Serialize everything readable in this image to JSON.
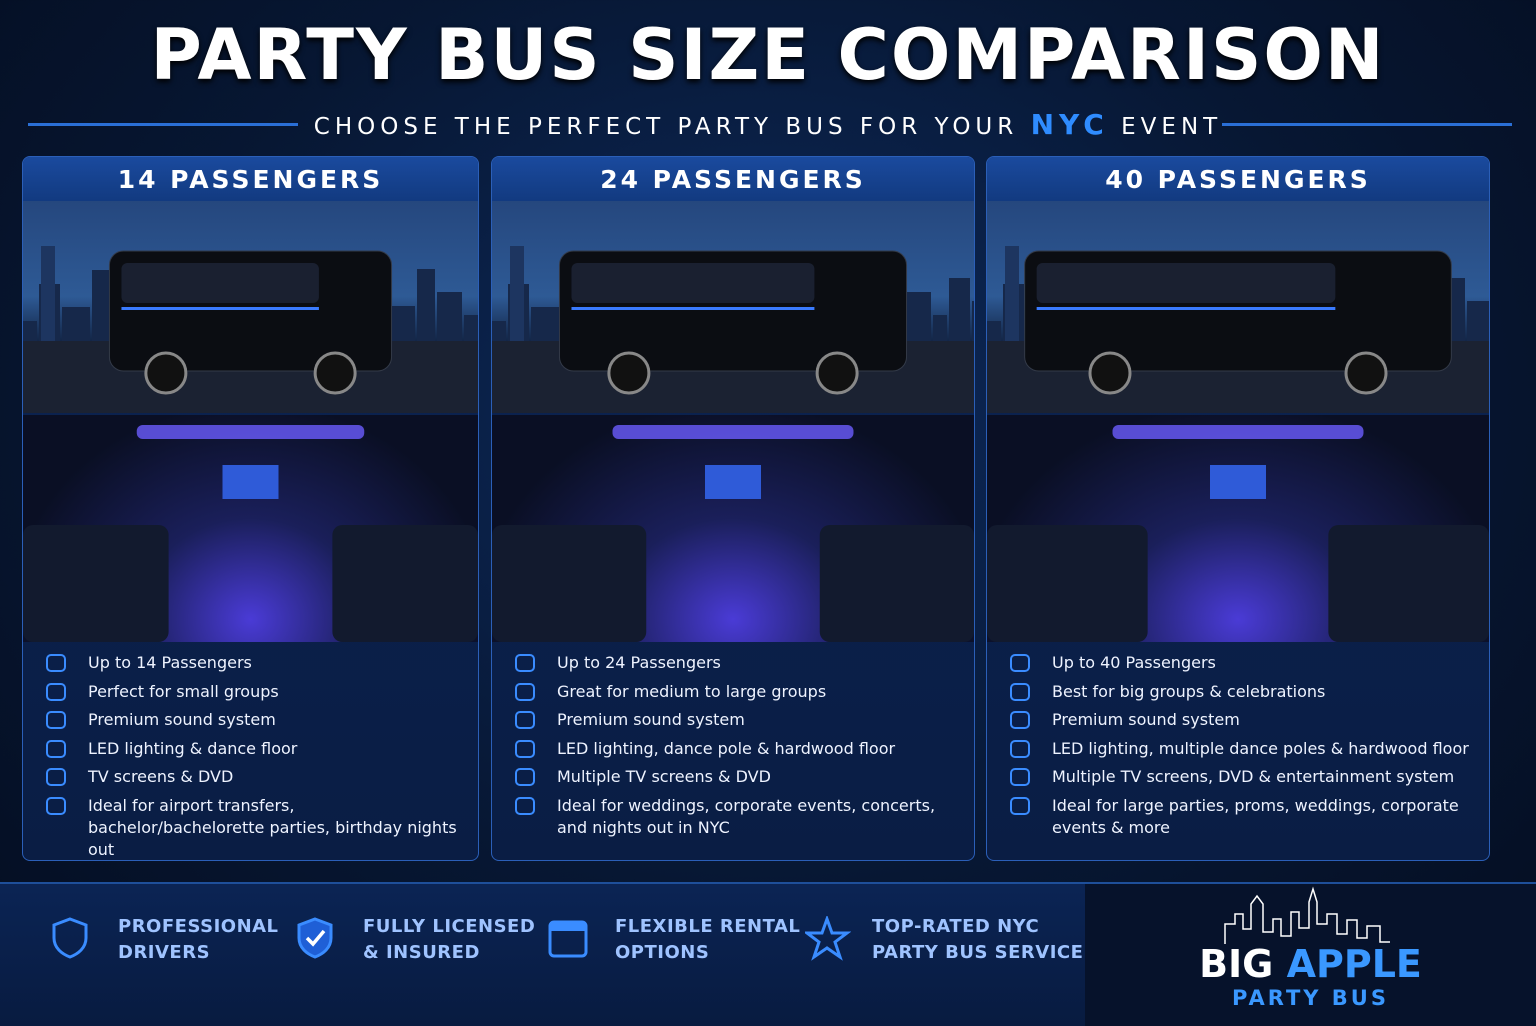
{
  "header": {
    "title": "PARTY BUS SIZE COMPARISON",
    "subtitle_before": "CHOOSE THE PERFECT PARTY BUS FOR YOUR",
    "subtitle_highlight": "NYC",
    "subtitle_after": "EVENT"
  },
  "cards": [
    {
      "title": "14 PASSENGERS",
      "features": [
        "Up to 14 Passengers",
        "Perfect for small groups",
        "Premium sound system",
        "LED lighting & dance floor",
        "TV screens & DVD",
        "Ideal for airport transfers, bachelor/bachelorette parties, birthday nights out"
      ]
    },
    {
      "title": "24 PASSENGERS",
      "features": [
        "Up to 24 Passengers",
        "Great for medium to large groups",
        "Premium sound system",
        "LED lighting, dance pole & hardwood floor",
        "Multiple TV screens & DVD",
        "Ideal for weddings, corporate events, concerts, and nights out in NYC"
      ]
    },
    {
      "title": "40 PASSENGERS",
      "features": [
        "Up to 40 Passengers",
        "Best for big groups & celebrations",
        "Premium sound system",
        "LED lighting, multiple dance poles & hardwood floor",
        "Multiple TV screens, DVD & entertainment system",
        "Ideal for large parties, proms, weddings, corporate events & more"
      ]
    }
  ],
  "footer": {
    "badges": [
      {
        "lines": [
          "PROFESSIONAL",
          "DRIVERS"
        ]
      },
      {
        "lines": [
          "FULLY LICENSED",
          "& INSURED"
        ]
      },
      {
        "lines": [
          "FLEXIBLE RENTAL",
          "OPTIONS"
        ]
      },
      {
        "lines": [
          "TOP-RATED NYC",
          "PARTY BUS SERVICE"
        ]
      }
    ],
    "brand": {
      "name_first": "BIG",
      "name_second": "APPLE",
      "tagline": "PARTY BUS"
    }
  }
}
